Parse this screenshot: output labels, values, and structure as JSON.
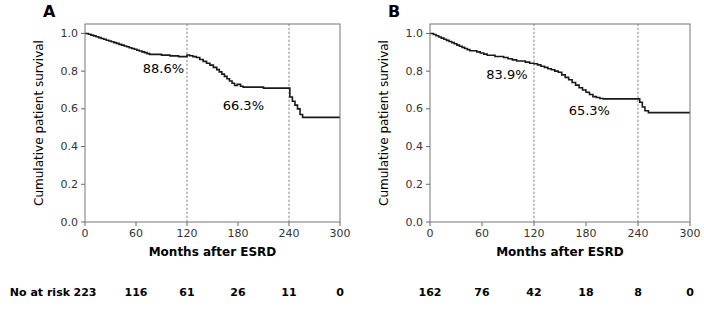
{
  "chart_data": [
    {
      "type": "step",
      "title": "A",
      "xlabel": "Months after ESRD",
      "ylabel": "Cumulative patient survival",
      "x": [
        0,
        4,
        7,
        10,
        13,
        16,
        19,
        22,
        25,
        28,
        31,
        34,
        37,
        40,
        43,
        46,
        49,
        52,
        55,
        58,
        61,
        64,
        67,
        70,
        73,
        76,
        80,
        85,
        90,
        95,
        100,
        105,
        110,
        115,
        120,
        123,
        127,
        131,
        135,
        139,
        143,
        147,
        151,
        155,
        158,
        161,
        164,
        167,
        170,
        173,
        176,
        179,
        183,
        186,
        190,
        195,
        200,
        205,
        210,
        215,
        220,
        225,
        230,
        235,
        240,
        241,
        244,
        247,
        250,
        253,
        256,
        260,
        265,
        270,
        275,
        280,
        285,
        290,
        295,
        300
      ],
      "values": [
        1.0,
        0.996,
        0.991,
        0.987,
        0.982,
        0.978,
        0.973,
        0.969,
        0.964,
        0.96,
        0.956,
        0.951,
        0.947,
        0.942,
        0.938,
        0.933,
        0.929,
        0.924,
        0.92,
        0.916,
        0.911,
        0.907,
        0.902,
        0.898,
        0.893,
        0.889,
        0.889,
        0.889,
        0.885,
        0.885,
        0.881,
        0.881,
        0.877,
        0.877,
        0.886,
        0.882,
        0.877,
        0.872,
        0.862,
        0.852,
        0.842,
        0.832,
        0.82,
        0.808,
        0.796,
        0.784,
        0.772,
        0.76,
        0.748,
        0.736,
        0.724,
        0.73,
        0.72,
        0.715,
        0.715,
        0.715,
        0.715,
        0.715,
        0.71,
        0.71,
        0.71,
        0.71,
        0.71,
        0.71,
        0.71,
        0.663,
        0.64,
        0.62,
        0.6,
        0.57,
        0.555,
        0.555,
        0.555,
        0.555,
        0.555,
        0.555,
        0.555,
        0.555,
        0.555,
        0.555
      ],
      "color": "#1a1a1a",
      "xlim": [
        0,
        300
      ],
      "ylim": [
        0.0,
        1.05
      ],
      "xticks": [
        0,
        60,
        120,
        180,
        240,
        300
      ],
      "yticks": [
        {
          "value": 0.0,
          "label": "0.0"
        },
        0.2,
        0.4,
        0.6,
        0.8,
        {
          "value": 1.0,
          "label": "1.0"
        }
      ],
      "vlines": {
        "values": [
          120,
          240
        ],
        "color": "#999999",
        "line_style": "dotted"
      },
      "annotations": [
        {
          "text": "88.6%",
          "x": 68,
          "y": 0.79
        },
        {
          "text": "66.3%",
          "x": 162,
          "y": 0.595
        }
      ],
      "at_risk": {
        "label": "No at risk",
        "x": [
          0,
          60,
          120,
          180,
          240,
          300
        ],
        "values": [
          223,
          116,
          61,
          26,
          11,
          0
        ]
      }
    },
    {
      "type": "step",
      "title": "B",
      "xlabel": "Months after ESRD",
      "ylabel": "Cumulative patient survival",
      "x": [
        0,
        4,
        7,
        10,
        13,
        16,
        19,
        22,
        25,
        28,
        31,
        34,
        37,
        40,
        43,
        46,
        50,
        54,
        58,
        62,
        66,
        70,
        75,
        80,
        85,
        90,
        95,
        100,
        105,
        110,
        115,
        120,
        124,
        128,
        132,
        136,
        140,
        144,
        148,
        152,
        156,
        160,
        164,
        168,
        172,
        176,
        180,
        184,
        188,
        192,
        196,
        200,
        205,
        210,
        215,
        220,
        225,
        230,
        235,
        240,
        242,
        245,
        248,
        252,
        260,
        270,
        280,
        290,
        300
      ],
      "values": [
        1.0,
        0.994,
        0.988,
        0.981,
        0.975,
        0.969,
        0.963,
        0.957,
        0.951,
        0.945,
        0.938,
        0.932,
        0.926,
        0.92,
        0.914,
        0.908,
        0.908,
        0.902,
        0.896,
        0.89,
        0.884,
        0.884,
        0.878,
        0.878,
        0.872,
        0.866,
        0.86,
        0.854,
        0.854,
        0.848,
        0.842,
        0.839,
        0.833,
        0.826,
        0.82,
        0.813,
        0.807,
        0.8,
        0.794,
        0.78,
        0.767,
        0.754,
        0.74,
        0.726,
        0.712,
        0.7,
        0.688,
        0.676,
        0.665,
        0.66,
        0.655,
        0.653,
        0.653,
        0.653,
        0.653,
        0.653,
        0.653,
        0.653,
        0.653,
        0.653,
        0.635,
        0.61,
        0.59,
        0.58,
        0.58,
        0.58,
        0.58,
        0.58,
        0.58
      ],
      "color": "#1a1a1a",
      "xlim": [
        0,
        300
      ],
      "ylim": [
        0.0,
        1.05
      ],
      "xticks": [
        0,
        60,
        120,
        180,
        240,
        300
      ],
      "yticks": [
        {
          "value": 0.0,
          "label": "0.0"
        },
        0.2,
        0.4,
        0.6,
        0.8,
        {
          "value": 1.0,
          "label": "1.0"
        }
      ],
      "vlines": {
        "values": [
          120,
          240
        ],
        "color": "#999999",
        "line_style": "dotted"
      },
      "annotations": [
        {
          "text": "83.9%",
          "x": 65,
          "y": 0.76
        },
        {
          "text": "65.3%",
          "x": 160,
          "y": 0.565
        }
      ],
      "at_risk": {
        "x": [
          0,
          60,
          120,
          180,
          240,
          300
        ],
        "values": [
          162,
          76,
          42,
          18,
          8,
          0
        ]
      }
    }
  ]
}
